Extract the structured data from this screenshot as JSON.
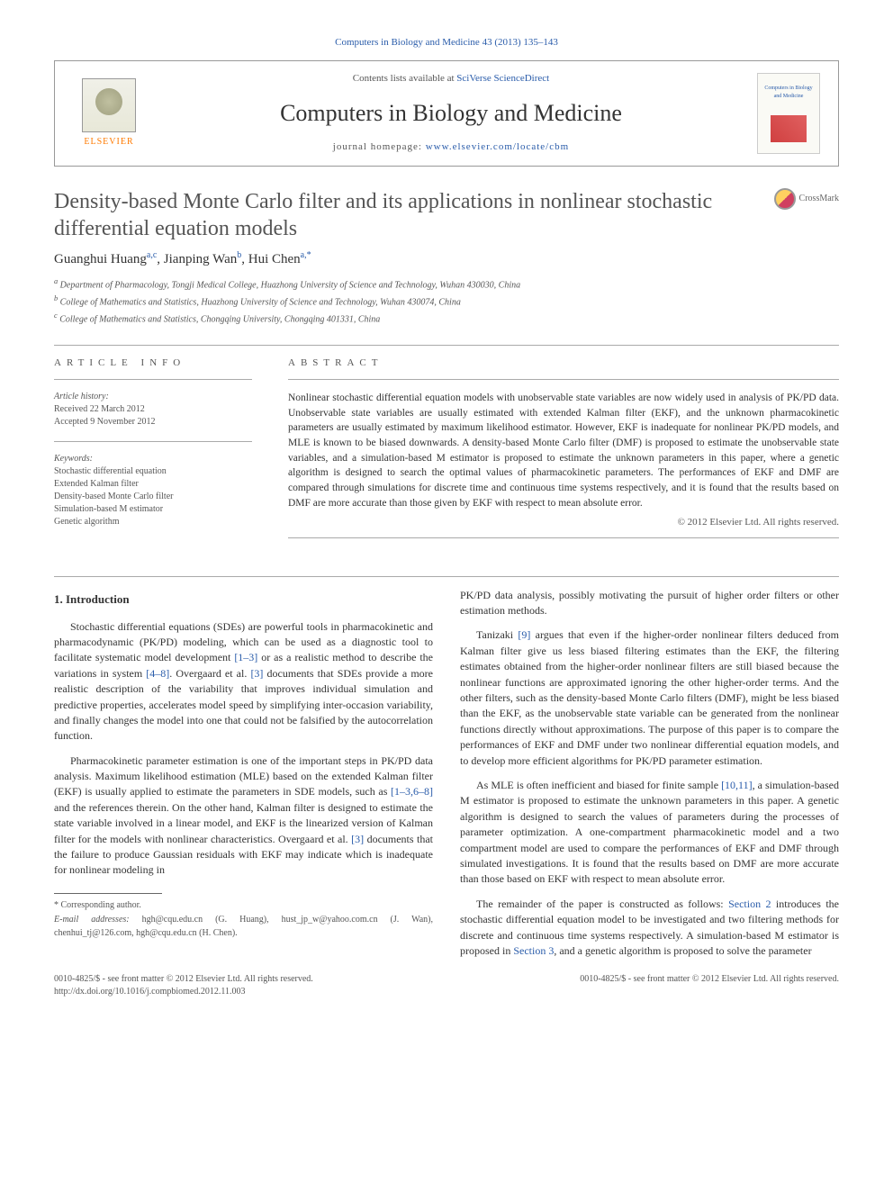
{
  "journal": {
    "citation_line": "Computers in Biology and Medicine 43 (2013) 135–143",
    "contents_prefix": "Contents lists available at ",
    "contents_link": "SciVerse ScienceDirect",
    "title": "Computers in Biology and Medicine",
    "homepage_prefix": "journal homepage: ",
    "homepage_link": "www.elsevier.com/locate/cbm",
    "elsevier_label": "ELSEVIER",
    "cover_text": "Computers in Biology and Medicine"
  },
  "crossmark_label": "CrossMark",
  "paper": {
    "title": "Density-based Monte Carlo filter and its applications in nonlinear stochastic differential equation models",
    "authors_html": "Guanghui Huang|a,c|, Jianping Wan|b|, Hui Chen|a,*|",
    "authors": [
      {
        "name": "Guanghui Huang",
        "sup": "a,c"
      },
      {
        "name": "Jianping Wan",
        "sup": "b"
      },
      {
        "name": "Hui Chen",
        "sup": "a,*"
      }
    ],
    "affiliations": [
      {
        "sup": "a",
        "text": "Department of Pharmacology, Tongji Medical College, Huazhong University of Science and Technology, Wuhan 430030, China"
      },
      {
        "sup": "b",
        "text": "College of Mathematics and Statistics, Huazhong University of Science and Technology, Wuhan 430074, China"
      },
      {
        "sup": "c",
        "text": "College of Mathematics and Statistics, Chongqing University, Chongqing 401331, China"
      }
    ]
  },
  "article_info": {
    "heading": "ARTICLE INFO",
    "history_label": "Article history:",
    "received": "Received 22 March 2012",
    "accepted": "Accepted 9 November 2012",
    "keywords_label": "Keywords:",
    "keywords": [
      "Stochastic differential equation",
      "Extended Kalman filter",
      "Density-based Monte Carlo filter",
      "Simulation-based M estimator",
      "Genetic algorithm"
    ]
  },
  "abstract": {
    "heading": "ABSTRACT",
    "text": "Nonlinear stochastic differential equation models with unobservable state variables are now widely used in analysis of PK/PD data. Unobservable state variables are usually estimated with extended Kalman filter (EKF), and the unknown pharmacokinetic parameters are usually estimated by maximum likelihood estimator. However, EKF is inadequate for nonlinear PK/PD models, and MLE is known to be biased downwards. A density-based Monte Carlo filter (DMF) is proposed to estimate the unobservable state variables, and a simulation-based M estimator is proposed to estimate the unknown parameters in this paper, where a genetic algorithm is designed to search the optimal values of pharmacokinetic parameters. The performances of EKF and DMF are compared through simulations for discrete time and continuous time systems respectively, and it is found that the results based on DMF are more accurate than those given by EKF with respect to mean absolute error.",
    "copyright": "© 2012 Elsevier Ltd. All rights reserved."
  },
  "body": {
    "section1_heading": "1.  Introduction",
    "p1": "Stochastic differential equations (SDEs) are powerful tools in pharmacokinetic and pharmacodynamic (PK/PD) modeling, which can be used as a diagnostic tool to facilitate systematic model development [1–3] or as a realistic method to describe the variations in system [4–8]. Overgaard et al. [3] documents that SDEs provide a more realistic description of the variability that improves individual simulation and predictive properties, accelerates model speed by simplifying inter-occasion variability, and finally changes the model into one that could not be falsified by the autocorrelation function.",
    "p2": "Pharmacokinetic parameter estimation is one of the important steps in PK/PD data analysis. Maximum likelihood estimation (MLE) based on the extended Kalman filter (EKF) is usually applied to estimate the parameters in SDE models, such as [1–3,6–8] and the references therein. On the other hand, Kalman filter is designed to estimate the state variable involved in a linear model, and EKF is the linearized version of Kalman filter for the models with nonlinear characteristics. Overgaard et al. [3] documents that the failure to produce Gaussian residuals with EKF may indicate which is inadequate for nonlinear modeling in",
    "p3": "PK/PD data analysis, possibly motivating the pursuit of higher order filters or other estimation methods.",
    "p4": "Tanizaki [9] argues that even if the higher-order nonlinear filters deduced from Kalman filter give us less biased filtering estimates than the EKF, the filtering estimates obtained from the higher-order nonlinear filters are still biased because the nonlinear functions are approximated ignoring the other higher-order terms. And the other filters, such as the density-based Monte Carlo filters (DMF), might be less biased than the EKF, as the unobservable state variable can be generated from the nonlinear functions directly without approximations. The purpose of this paper is to compare the performances of EKF and DMF under two nonlinear differential equation models, and to develop more efficient algorithms for PK/PD parameter estimation.",
    "p5": "As MLE is often inefficient and biased for finite sample [10,11], a simulation-based M estimator is proposed to estimate the unknown parameters in this paper. A genetic algorithm is designed to search the values of parameters during the processes of parameter optimization. A one-compartment pharmacokinetic model and a two compartment model are used to compare the performances of EKF and DMF through simulated investigations. It is found that the results based on DMF are more accurate than those based on EKF with respect to mean absolute error.",
    "p6": "The remainder of the paper is constructed as follows: Section 2 introduces the stochastic differential equation model to be investigated and two filtering methods for discrete and continuous time systems respectively. A simulation-based M estimator is proposed in Section 3, and a genetic algorithm is proposed to solve the parameter"
  },
  "footnotes": {
    "corr": "* Corresponding author.",
    "email_label": "E-mail addresses:",
    "emails": "hgh@cqu.edu.cn (G. Huang), hust_jp_w@yahoo.com.cn (J. Wan), chenhui_tj@126.com, hgh@cqu.edu.cn (H. Chen)."
  },
  "footer": {
    "left1": "0010-4825/$ - see front matter © 2012 Elsevier Ltd. All rights reserved.",
    "left2": "http://dx.doi.org/10.1016/j.compbiomed.2012.11.003",
    "right": "0010-4825/$ - see front matter © 2012 Elsevier Ltd. All rights reserved."
  },
  "colors": {
    "link": "#2a5caa",
    "text": "#333333",
    "muted": "#555555",
    "elsevier_orange": "#ff7a00"
  }
}
